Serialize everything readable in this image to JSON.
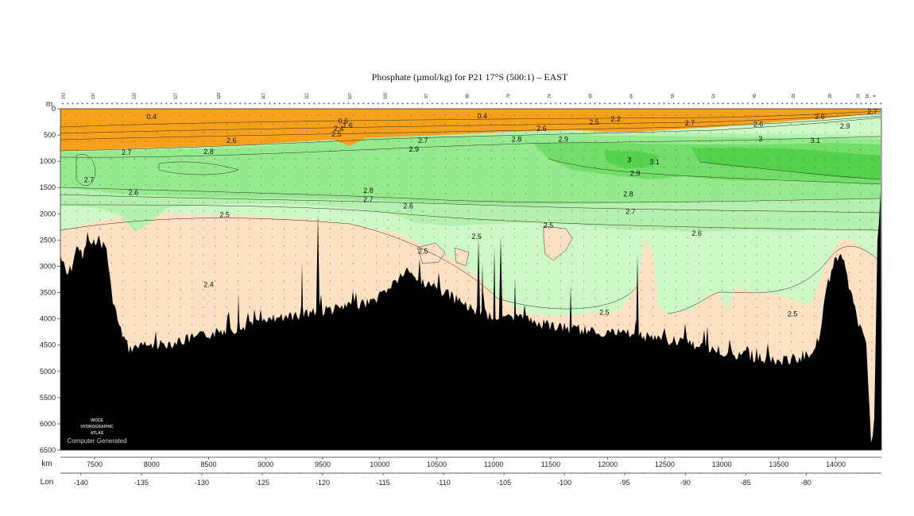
{
  "chart_data": {
    "type": "section-contour",
    "title": "Phosphate (µmol/kg) for P21 17°S (500:1) – EAST",
    "ylabel": "m",
    "xlabel_km": "km",
    "xlabel_lon": "Lon",
    "xlim_km": [
      7200,
      14400
    ],
    "ylim_m": [
      6500,
      0
    ],
    "depth_ticks": [
      0,
      500,
      1000,
      1500,
      2000,
      2500,
      3000,
      3500,
      4000,
      4500,
      5000,
      5500,
      6000,
      6500
    ],
    "km_ticks": [
      7500,
      8000,
      8500,
      9000,
      9500,
      10000,
      10500,
      11000,
      11500,
      12000,
      12500,
      13000,
      13500,
      14000
    ],
    "lon_ticks": [
      {
        "lon": -140,
        "km": 7380
      },
      {
        "lon": -135,
        "km": 7910
      },
      {
        "lon": -130,
        "km": 8440
      },
      {
        "lon": -125,
        "km": 8970
      },
      {
        "lon": -120,
        "km": 9500
      },
      {
        "lon": -115,
        "km": 10030
      },
      {
        "lon": -110,
        "km": 10560
      },
      {
        "lon": -105,
        "km": 11090
      },
      {
        "lon": -100,
        "km": 11620
      },
      {
        "lon": -95,
        "km": 12150
      },
      {
        "lon": -90,
        "km": 12680
      },
      {
        "lon": -85,
        "km": 13210
      },
      {
        "lon": -80,
        "km": 13740
      }
    ],
    "stations": [
      {
        "label": "142",
        "km": 7240
      },
      {
        "label": "137",
        "km": 7500
      },
      {
        "label": "132",
        "km": 7860
      },
      {
        "label": "127",
        "km": 8220
      },
      {
        "label": "122",
        "km": 8600
      },
      {
        "label": "117",
        "km": 8990
      },
      {
        "label": "112",
        "km": 9370
      },
      {
        "label": "107",
        "km": 9750
      },
      {
        "label": "102",
        "km": 10060
      },
      {
        "label": "97",
        "km": 10420
      },
      {
        "label": "88",
        "km": 10780
      },
      {
        "label": "79",
        "km": 11140
      },
      {
        "label": "74",
        "km": 11500
      },
      {
        "label": "69",
        "km": 11860
      },
      {
        "label": "64",
        "km": 12220
      },
      {
        "label": "59",
        "km": 12580
      },
      {
        "label": "54",
        "km": 12940
      },
      {
        "label": "49",
        "km": 13300
      },
      {
        "label": "33",
        "km": 13640
      },
      {
        "label": "28",
        "km": 13960
      },
      {
        "label": "24",
        "km": 14210
      },
      {
        "label": "16",
        "km": 14290
      },
      {
        "label": "4",
        "km": 14350
      }
    ],
    "contour_labels": [
      {
        "text": "0.4",
        "km": 8000,
        "m": 200
      },
      {
        "text": "0.4",
        "km": 10900,
        "m": 180
      },
      {
        "text": "0.6",
        "km": 9680,
        "m": 280
      },
      {
        "text": "1.6",
        "km": 9720,
        "m": 360
      },
      {
        "text": "2.4",
        "km": 9640,
        "m": 420
      },
      {
        "text": "2.5",
        "km": 9620,
        "m": 530
      },
      {
        "text": "2.2",
        "km": 12070,
        "m": 240
      },
      {
        "text": "2.5",
        "km": 11880,
        "m": 300
      },
      {
        "text": "2.6",
        "km": 11420,
        "m": 420
      },
      {
        "text": "2.6",
        "km": 8700,
        "m": 650
      },
      {
        "text": "2.7",
        "km": 10380,
        "m": 650
      },
      {
        "text": "2.8",
        "km": 11200,
        "m": 630
      },
      {
        "text": "2.9",
        "km": 11610,
        "m": 630
      },
      {
        "text": "2.7",
        "km": 12720,
        "m": 320
      },
      {
        "text": "2.6",
        "km": 13320,
        "m": 340
      },
      {
        "text": "2.6",
        "km": 13860,
        "m": 200
      },
      {
        "text": "2.9",
        "km": 14080,
        "m": 380
      },
      {
        "text": "2.7",
        "km": 14320,
        "m": 100
      },
      {
        "text": "3",
        "km": 13340,
        "m": 620
      },
      {
        "text": "3.1",
        "km": 13820,
        "m": 650
      },
      {
        "text": "2.7",
        "km": 7780,
        "m": 880
      },
      {
        "text": "2.8",
        "km": 8500,
        "m": 860
      },
      {
        "text": "2.9",
        "km": 10300,
        "m": 820
      },
      {
        "text": "3",
        "km": 12190,
        "m": 1020
      },
      {
        "text": "3.1",
        "km": 12410,
        "m": 1060
      },
      {
        "text": "2.9",
        "km": 12240,
        "m": 1280
      },
      {
        "text": "2.7",
        "km": 7450,
        "m": 1400
      },
      {
        "text": "2.6",
        "km": 7840,
        "m": 1640
      },
      {
        "text": "2.8",
        "km": 9900,
        "m": 1600
      },
      {
        "text": "2.7",
        "km": 9900,
        "m": 1770
      },
      {
        "text": "2.8",
        "km": 12180,
        "m": 1670
      },
      {
        "text": "2.6",
        "km": 10250,
        "m": 1900
      },
      {
        "text": "2.7",
        "km": 12200,
        "m": 2000
      },
      {
        "text": "2.5",
        "km": 8640,
        "m": 2060
      },
      {
        "text": "2.6",
        "km": 12780,
        "m": 2420
      },
      {
        "text": "2.5",
        "km": 11480,
        "m": 2270
      },
      {
        "text": "2.5",
        "km": 10850,
        "m": 2480
      },
      {
        "text": "2.5",
        "km": 10380,
        "m": 2760
      },
      {
        "text": "2.4",
        "km": 8500,
        "m": 3390
      },
      {
        "text": "2.5",
        "km": 11970,
        "m": 3920
      },
      {
        "text": "2.5",
        "km": 13620,
        "m": 3950
      }
    ],
    "watermark": [
      "WOCE",
      "HYDROGRAPHIC",
      "ATLAS"
    ],
    "credit": "Computer Generated",
    "colors": {
      "low_phosphate": "#f7a01c",
      "range_2_4": "#fbe0c1",
      "range_2_5": "#cdf7c6",
      "range_2_6": "#b4f1ae",
      "range_2_8": "#96ea8e",
      "range_3_0": "#72dd69",
      "range_3_1": "#55d24c",
      "bottom": "#000000"
    }
  }
}
